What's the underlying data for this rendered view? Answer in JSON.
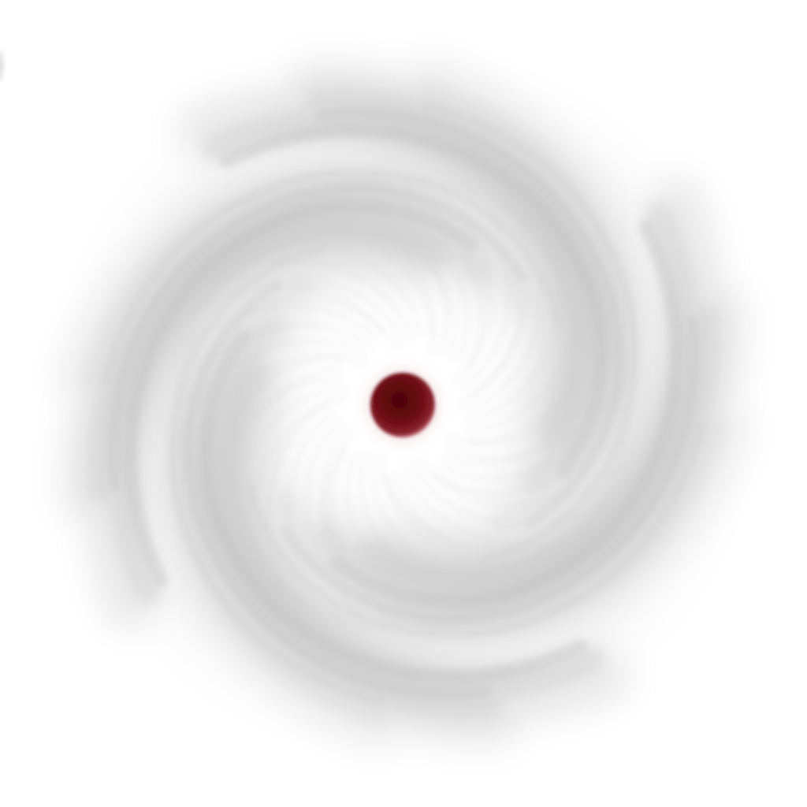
{
  "scene": {
    "background_color": "#ffffff",
    "haze_color": "#bdbdbd",
    "core_color": "#6e0d14",
    "core_glow_color": "#b03a45",
    "spiral_arms": 4,
    "rotation": "counter-clockwise"
  }
}
